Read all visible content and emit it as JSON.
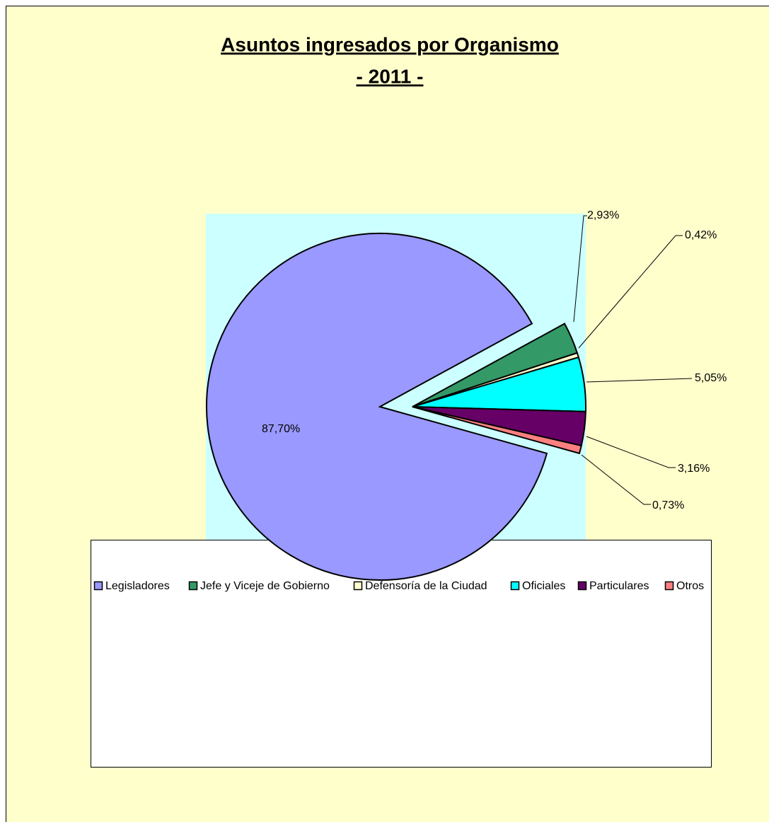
{
  "chart_data": {
    "type": "pie",
    "title": "Asuntos ingresados por Organismo",
    "subtitle": "- 2011 -",
    "categories": [
      "Legisladores",
      "Jefe y Viceje de Gobierno",
      "Defensoría de la Ciudad",
      "Oficiales",
      "Particulares",
      "Otros"
    ],
    "values": [
      87.7,
      2.93,
      0.42,
      5.05,
      3.16,
      0.73
    ],
    "value_labels": [
      "87,70%",
      "2,93%",
      "0,42%",
      "5,05%",
      "3,16%",
      "0,73%"
    ],
    "colors": [
      "#9999ff",
      "#339966",
      "#ffffcc",
      "#00ffff",
      "#660066",
      "#ff8080"
    ],
    "legend": "bottom"
  }
}
